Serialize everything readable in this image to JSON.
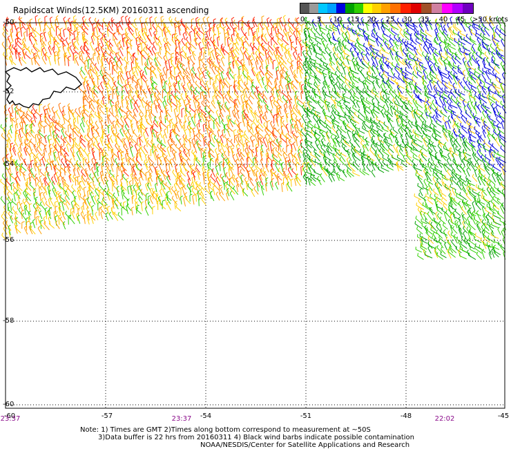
{
  "title": "Rapidscat Winds(12.5KM) 20160311 ascending",
  "legend": {
    "units": ">50 knots",
    "labels": [
      "0",
      "5",
      "10",
      "15",
      "20",
      "25",
      "30",
      "35",
      "40",
      "45"
    ],
    "colors": [
      "#555555",
      "#9a9a9a",
      "#00c8ff",
      "#00a0ff",
      "#0000e0",
      "#00a000",
      "#30d000",
      "#ffff00",
      "#ffd000",
      "#ffa000",
      "#ff7000",
      "#ff2000",
      "#e00000",
      "#a05028",
      "#d080a0",
      "#ff00ff",
      "#b000ff",
      "#7000c0"
    ]
  },
  "map": {
    "lat_labels": [
      "-50",
      "-52",
      "-54",
      "-56",
      "-58",
      "-60"
    ],
    "lon_labels": [
      "-60",
      "-57",
      "-54",
      "-51",
      "-48",
      "-45"
    ],
    "times": [
      "23:37",
      "23:37",
      "22:02"
    ]
  },
  "notes": {
    "line1": "Note: 1) Times are GMT 2)Times along bottom correspond to measurement at ~50S",
    "line2": "3)Data buffer is 22 hrs from 20160311 4) Black wind barbs indicate possible contamination",
    "line3": "NOAA/NESDIS/Center for Satellite Applications and Research"
  }
}
